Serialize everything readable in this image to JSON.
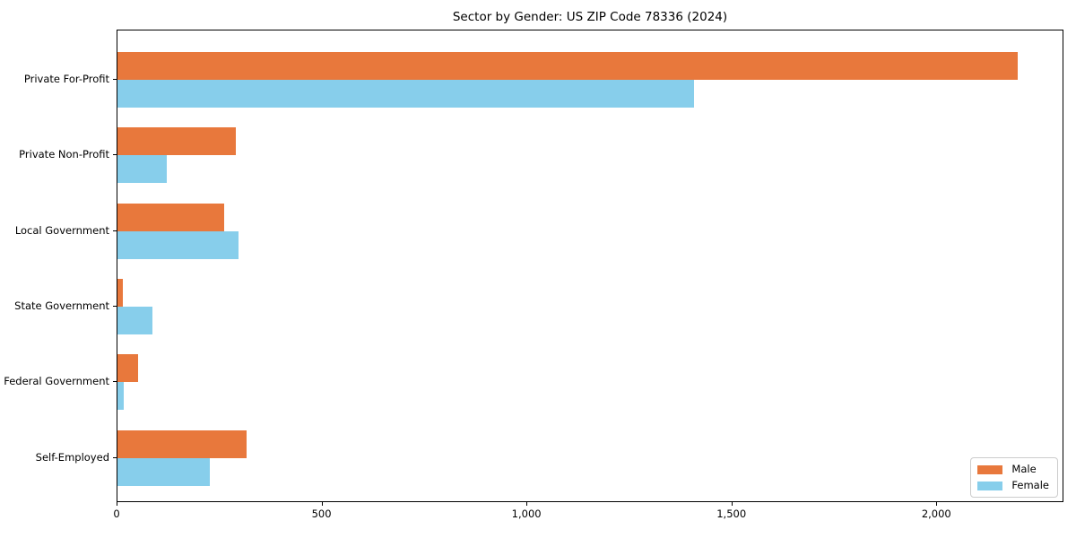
{
  "chart_data": {
    "type": "bar",
    "orientation": "horizontal",
    "title": "Sector by Gender: US ZIP Code 78336 (2024)",
    "categories": [
      "Private For-Profit",
      "Private Non-Profit",
      "Local Government",
      "State Government",
      "Federal Government",
      "Self-Employed"
    ],
    "series": [
      {
        "name": "Male",
        "color": "#e8783c",
        "values": [
          2200,
          290,
          260,
          13,
          50,
          315
        ]
      },
      {
        "name": "Female",
        "color": "#87ceeb",
        "values": [
          1410,
          120,
          295,
          85,
          15,
          225
        ]
      }
    ],
    "xlim": [
      0,
      2310
    ],
    "xticks": [
      {
        "value": 0,
        "label": "0"
      },
      {
        "value": 500,
        "label": "500"
      },
      {
        "value": 1000,
        "label": "1,000"
      },
      {
        "value": 1500,
        "label": "1,500"
      },
      {
        "value": 2000,
        "label": "2,000"
      }
    ],
    "ylabel": "",
    "xlabel": "",
    "grid": false,
    "legend": {
      "position": "lower right",
      "entries": [
        "Male",
        "Female"
      ]
    }
  }
}
